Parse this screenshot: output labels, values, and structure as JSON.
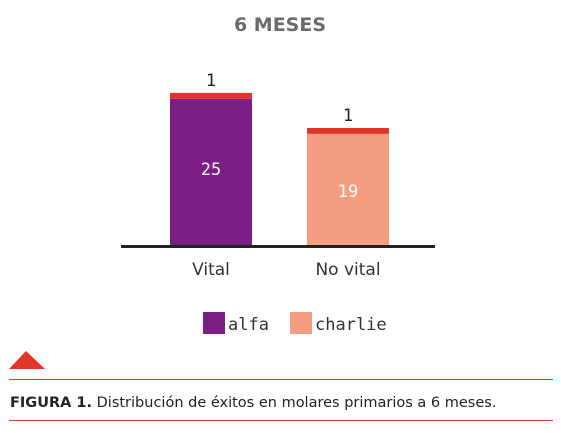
{
  "chart_data": {
    "type": "bar",
    "stacked": true,
    "title": "6 MESES",
    "categories": [
      "Vital",
      "No vital"
    ],
    "series": [
      {
        "name": "alfa",
        "values": [
          25,
          0
        ]
      },
      {
        "name": "charlie",
        "values": [
          0,
          19
        ]
      },
      {
        "name": "",
        "values": [
          1,
          1
        ]
      }
    ],
    "segment_labels": [
      {
        "category": "Vital",
        "segments": [
          "25",
          "1"
        ]
      },
      {
        "category": "No vital",
        "segments": [
          "19",
          "1"
        ]
      }
    ],
    "legend": [
      "alfa",
      "charlie"
    ],
    "legend_position": "bottom",
    "ylim": [
      0,
      26
    ],
    "grid": false,
    "colors": {
      "alfa": "#7b1f86",
      "charlie": "#f49d80",
      "top": "#e03527",
      "axis": "#222222",
      "rule": "#d9402f",
      "accent": "#e03527"
    }
  },
  "caption": {
    "label": "FIGURA 1.",
    "text": "Distribución de éxitos en molares primarios a 6 meses."
  }
}
